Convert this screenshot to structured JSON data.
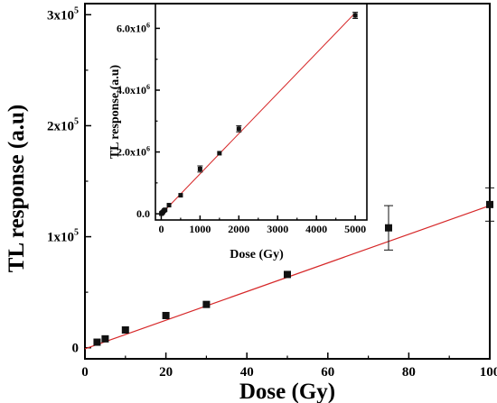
{
  "colors": {
    "fit_line": "#d62728",
    "marker": "#111111",
    "axis": "#000000"
  },
  "chart_data": [
    {
      "id": "main",
      "type": "scatter",
      "xlabel": "Dose (Gy)",
      "ylabel": "TL response (a.u)",
      "xlim": [
        0,
        100
      ],
      "ylim": [
        -10000,
        310000
      ],
      "x_ticks": [
        0,
        20,
        40,
        60,
        80,
        100
      ],
      "y_ticks": [
        0,
        100000,
        200000,
        300000
      ],
      "y_tick_labels": [
        {
          "base": "0",
          "exp": ""
        },
        {
          "base": "1x10",
          "exp": "5"
        },
        {
          "base": "2x10",
          "exp": "5"
        },
        {
          "base": "3x10",
          "exp": "5"
        }
      ],
      "series": [
        {
          "x": [
            3,
            5,
            10,
            20,
            30,
            50,
            75,
            100
          ],
          "y": [
            5000,
            8000,
            16000,
            29000,
            39000,
            66000,
            108000,
            129000
          ],
          "err": [
            0,
            0,
            0,
            0,
            0,
            0,
            20000,
            15000
          ]
        }
      ],
      "fit": {
        "x": [
          0,
          100
        ],
        "y": [
          -1000,
          128000
        ]
      }
    },
    {
      "id": "inset",
      "type": "scatter",
      "xlabel": "Dose (Gy)",
      "ylabel": "TL response (a.u)",
      "xlim": [
        -150,
        5300
      ],
      "ylim": [
        -200000,
        6800000
      ],
      "x_ticks": [
        0,
        1000,
        2000,
        3000,
        4000,
        5000
      ],
      "y_ticks": [
        0,
        2000000,
        4000000,
        6000000
      ],
      "y_tick_labels": [
        {
          "base": "0.0",
          "exp": ""
        },
        {
          "base": "2.0x10",
          "exp": "6"
        },
        {
          "base": "4.0x10",
          "exp": "6"
        },
        {
          "base": "6.0x10",
          "exp": "6"
        }
      ],
      "series": [
        {
          "x": [
            3,
            10,
            20,
            30,
            50,
            75,
            100,
            200,
            500,
            1000,
            1500,
            2000,
            5000
          ],
          "y": [
            5000,
            16000,
            29000,
            39000,
            66000,
            108000,
            129000,
            280000,
            600000,
            1450000,
            1960000,
            2750000,
            6420000
          ],
          "err": [
            0,
            0,
            0,
            0,
            0,
            0,
            0,
            0,
            0,
            100000,
            0,
            100000,
            100000
          ]
        }
      ],
      "fit": {
        "x": [
          0,
          5000
        ],
        "y": [
          -10000,
          6500000
        ]
      }
    }
  ]
}
